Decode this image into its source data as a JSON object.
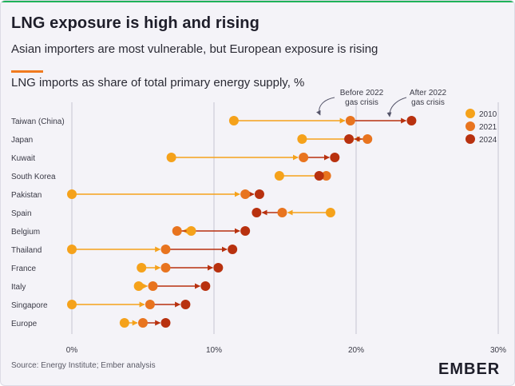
{
  "title": "LNG exposure is high and rising",
  "subtitle": "Asian importers are most vulnerable, but European exposure is rising",
  "chart_heading": "LNG imports as share of total primary energy supply, %",
  "source": "Source: Energy Institute; Ember analysis",
  "logo": "EMBER",
  "colors": {
    "y2010": "#f5a21b",
    "y2021": "#e8741f",
    "y2024": "#b8310f",
    "grid": "#c6c4d2",
    "text": "#3a3a46",
    "brand_strip": "#1fb25a"
  },
  "annotations": {
    "before": [
      "Before 2022",
      "gas crisis"
    ],
    "after": [
      "After 2022",
      "gas crisis"
    ]
  },
  "chart_data": {
    "type": "dumbbell",
    "title": "LNG imports as share of total primary energy supply, %",
    "x_ticks": [
      0,
      10,
      20,
      30
    ],
    "x_tick_labels": [
      "0%",
      "10%",
      "20%",
      "30%"
    ],
    "xlim": [
      0,
      30
    ],
    "grid": "vertical",
    "legend_placement": "top-right",
    "categories": [
      "Taiwan (China)",
      "Japan",
      "Kuwait",
      "South Korea",
      "Pakistan",
      "Spain",
      "Belgium",
      "Thailand",
      "France",
      "Italy",
      "Singapore",
      "Europe"
    ],
    "series": [
      {
        "name": "2010",
        "values": [
          11.4,
          16.2,
          7.0,
          14.6,
          0.0,
          18.2,
          8.4,
          0.0,
          4.9,
          4.7,
          0.0,
          3.7
        ]
      },
      {
        "name": "2021",
        "values": [
          19.6,
          20.8,
          16.3,
          17.9,
          12.2,
          14.8,
          7.4,
          6.6,
          6.6,
          5.7,
          5.5,
          5.0
        ]
      },
      {
        "name": "2024",
        "values": [
          23.9,
          19.5,
          18.5,
          17.4,
          13.2,
          13.0,
          12.2,
          11.3,
          10.3,
          9.4,
          8.0,
          6.6
        ]
      }
    ]
  }
}
